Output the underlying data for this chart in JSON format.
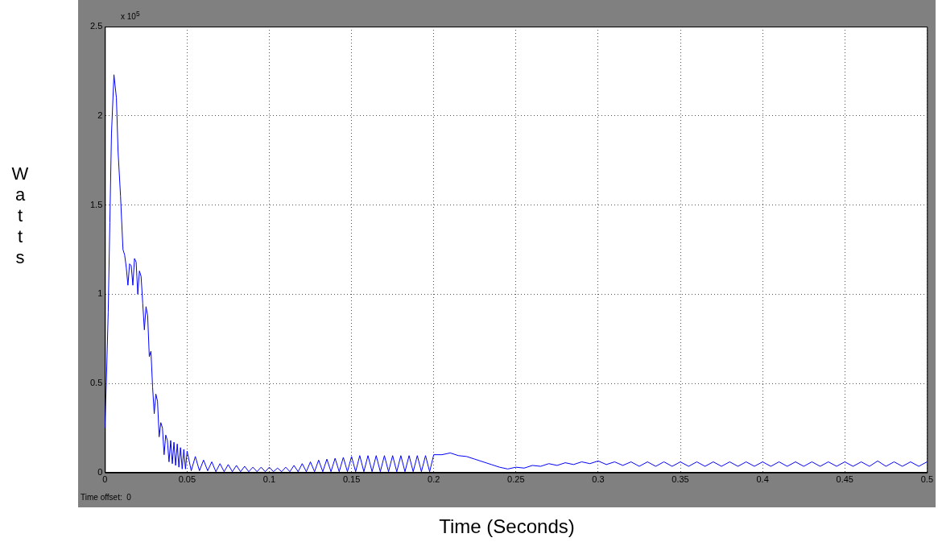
{
  "chart_data": {
    "type": "line",
    "xlabel": "Time (Seconds)",
    "ylabel": "Watts",
    "annotations": [
      "x 10$^{5}$",
      "Time offset:  0"
    ],
    "xlim": [
      0,
      0.5
    ],
    "xticks": [
      0,
      0.05,
      0.1,
      0.15,
      0.2,
      0.25,
      0.3,
      0.35,
      0.4,
      0.45,
      0.5
    ],
    "ylim": [
      0,
      2.5
    ],
    "yticks": [
      0,
      0.5,
      1,
      1.5,
      2,
      2.5
    ],
    "grid": true,
    "marker": "none",
    "line_style": "solid",
    "x": [
      0,
      0.001,
      0.002,
      0.003,
      0.004,
      0.0055,
      0.007,
      0.008,
      0.0095,
      0.011,
      0.012,
      0.013,
      0.014,
      0.015,
      0.016,
      0.017,
      0.018,
      0.019,
      0.02,
      0.021,
      0.022,
      0.023,
      0.024,
      0.025,
      0.026,
      0.027,
      0.028,
      0.029,
      0.03,
      0.031,
      0.032,
      0.033,
      0.034,
      0.035,
      0.036,
      0.037,
      0.038,
      0.039,
      0.04,
      0.041,
      0.042,
      0.043,
      0.044,
      0.045,
      0.046,
      0.047,
      0.048,
      0.049,
      0.05,
      0.0525,
      0.055,
      0.0575,
      0.06,
      0.0625,
      0.065,
      0.0675,
      0.07,
      0.0725,
      0.075,
      0.0775,
      0.08,
      0.0825,
      0.085,
      0.0875,
      0.09,
      0.0925,
      0.095,
      0.0975,
      0.1,
      0.1025,
      0.105,
      0.1075,
      0.11,
      0.1125,
      0.115,
      0.1175,
      0.12,
      0.1225,
      0.125,
      0.1275,
      0.13,
      0.1325,
      0.135,
      0.1375,
      0.14,
      0.1425,
      0.145,
      0.1475,
      0.15,
      0.1525,
      0.155,
      0.1575,
      0.16,
      0.1625,
      0.165,
      0.1675,
      0.17,
      0.1725,
      0.175,
      0.1775,
      0.18,
      0.1825,
      0.185,
      0.1875,
      0.19,
      0.1925,
      0.195,
      0.1975,
      0.2,
      0.205,
      0.21,
      0.215,
      0.22,
      0.225,
      0.23,
      0.235,
      0.24,
      0.245,
      0.25,
      0.255,
      0.26,
      0.265,
      0.27,
      0.275,
      0.28,
      0.285,
      0.29,
      0.295,
      0.3,
      0.305,
      0.31,
      0.315,
      0.32,
      0.325,
      0.33,
      0.335,
      0.34,
      0.345,
      0.35,
      0.355,
      0.36,
      0.365,
      0.37,
      0.375,
      0.38,
      0.385,
      0.39,
      0.395,
      0.4,
      0.405,
      0.41,
      0.415,
      0.42,
      0.425,
      0.43,
      0.435,
      0.44,
      0.445,
      0.45,
      0.455,
      0.46,
      0.465,
      0.47,
      0.475,
      0.48,
      0.485,
      0.49,
      0.495,
      0.5
    ],
    "series": [
      {
        "color": "#0000ff",
        "values": [
          0.25,
          0.55,
          0.9,
          1.4,
          1.9,
          2.23,
          2.1,
          1.8,
          1.55,
          1.25,
          1.22,
          1.15,
          1.05,
          1.17,
          1.16,
          1.05,
          1.2,
          1.18,
          1.0,
          1.13,
          1.1,
          0.95,
          0.8,
          0.93,
          0.88,
          0.65,
          0.68,
          0.48,
          0.33,
          0.44,
          0.4,
          0.2,
          0.28,
          0.25,
          0.1,
          0.21,
          0.18,
          0.06,
          0.18,
          0.05,
          0.17,
          0.04,
          0.16,
          0.03,
          0.14,
          0.02,
          0.13,
          0.02,
          0.12,
          0.01,
          0.09,
          0.01,
          0.07,
          0.01,
          0.06,
          0.005,
          0.05,
          0.005,
          0.045,
          0.005,
          0.04,
          0.005,
          0.035,
          0.005,
          0.03,
          0.005,
          0.03,
          0.005,
          0.03,
          0.005,
          0.025,
          0.005,
          0.03,
          0.005,
          0.04,
          0.005,
          0.05,
          0.005,
          0.06,
          0.005,
          0.07,
          0.005,
          0.075,
          0.005,
          0.08,
          0.005,
          0.085,
          0.005,
          0.09,
          0.005,
          0.095,
          0.005,
          0.095,
          0.005,
          0.095,
          0.005,
          0.095,
          0.005,
          0.095,
          0.005,
          0.095,
          0.005,
          0.095,
          0.005,
          0.095,
          0.005,
          0.095,
          0.005,
          0.1,
          0.1,
          0.11,
          0.095,
          0.09,
          0.075,
          0.06,
          0.045,
          0.03,
          0.02,
          0.03,
          0.025,
          0.04,
          0.035,
          0.05,
          0.04,
          0.055,
          0.045,
          0.06,
          0.05,
          0.065,
          0.045,
          0.06,
          0.04,
          0.06,
          0.035,
          0.06,
          0.035,
          0.06,
          0.035,
          0.06,
          0.035,
          0.06,
          0.035,
          0.06,
          0.035,
          0.06,
          0.035,
          0.06,
          0.035,
          0.06,
          0.035,
          0.06,
          0.035,
          0.06,
          0.035,
          0.06,
          0.035,
          0.06,
          0.035,
          0.06,
          0.035,
          0.06,
          0.035,
          0.065,
          0.035,
          0.06,
          0.035,
          0.06,
          0.035,
          0.06
        ]
      }
    ]
  }
}
